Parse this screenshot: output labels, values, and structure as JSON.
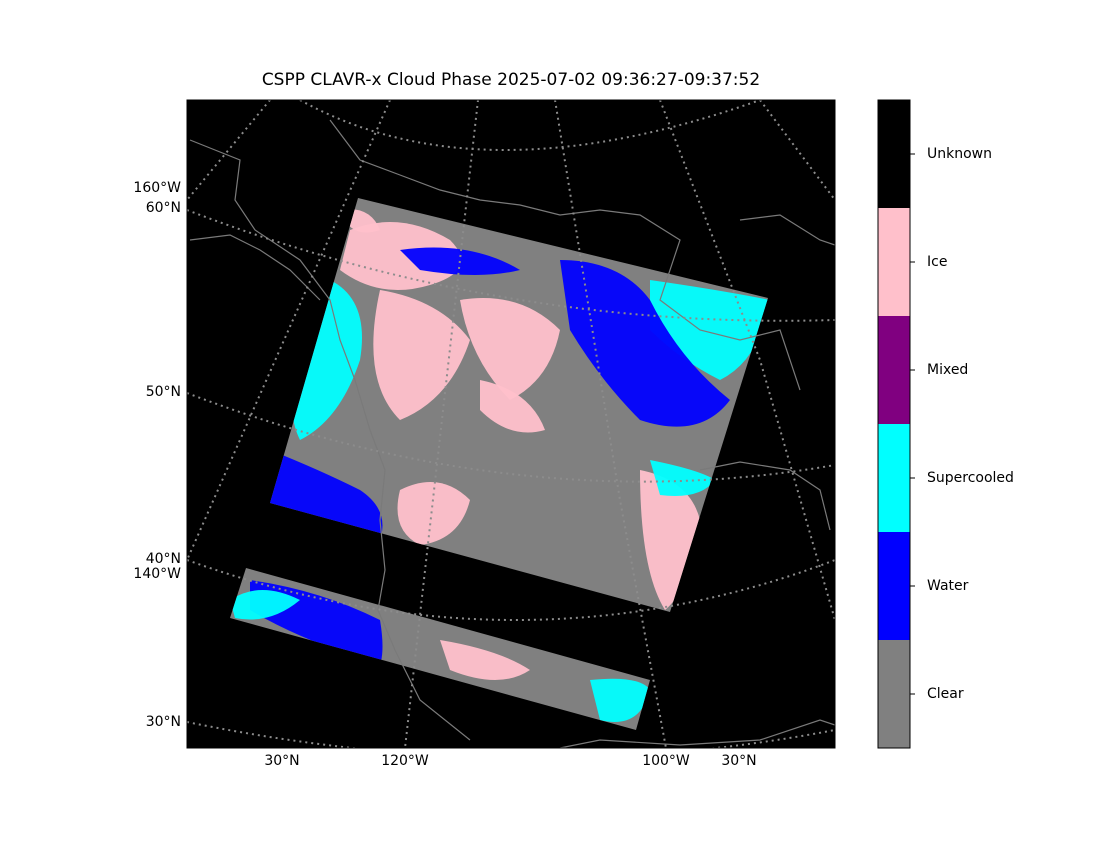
{
  "title": "CSPP CLAVR-x Cloud Phase 2025-07-02 09:36:27-09:37:52",
  "map": {
    "left_labels": [
      "160°W",
      "60°N",
      "50°N",
      "40°N",
      "140°W",
      "30°N"
    ],
    "bottom_labels": [
      "30°N",
      "120°W",
      "100°W",
      "30°N"
    ]
  },
  "colorbar": {
    "classes": [
      {
        "label": "Unknown",
        "color": "#000000"
      },
      {
        "label": "Ice",
        "color": "#ffc0cb"
      },
      {
        "label": "Mixed",
        "color": "#800080"
      },
      {
        "label": "Supercooled",
        "color": "#00ffff"
      },
      {
        "label": "Water",
        "color": "#0000ff"
      },
      {
        "label": "Clear",
        "color": "#808080"
      }
    ]
  }
}
